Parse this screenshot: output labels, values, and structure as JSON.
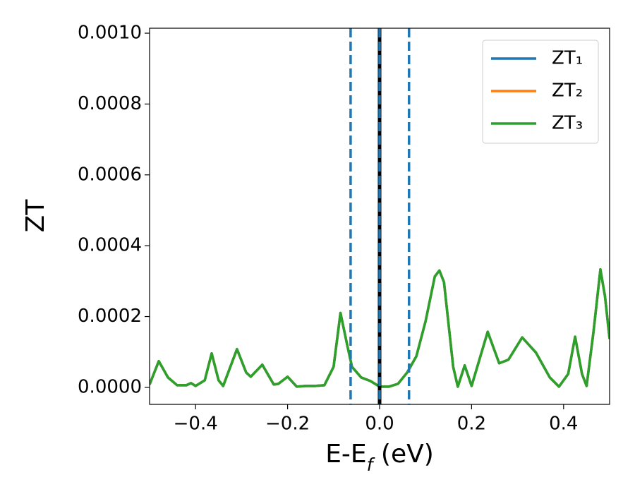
{
  "chart_data": {
    "type": "line",
    "x_label": {
      "main": "E-E",
      "sub": "f",
      "rest": " (eV)"
    },
    "y_label": "ZT",
    "x": [
      -0.5,
      -0.48,
      -0.46,
      -0.44,
      -0.42,
      -0.41,
      -0.4,
      -0.38,
      -0.365,
      -0.35,
      -0.34,
      -0.31,
      -0.29,
      -0.28,
      -0.255,
      -0.23,
      -0.22,
      -0.2,
      -0.18,
      -0.16,
      -0.14,
      -0.12,
      -0.1,
      -0.085,
      -0.07,
      -0.06,
      -0.04,
      -0.02,
      0,
      0.02,
      0.04,
      0.06,
      0.08,
      0.1,
      0.12,
      0.13,
      0.14,
      0.16,
      0.17,
      0.185,
      0.2,
      0.235,
      0.26,
      0.28,
      0.31,
      0.34,
      0.37,
      0.39,
      0.41,
      0.425,
      0.44,
      0.45,
      0.465,
      0.48,
      0.49,
      0.5
    ],
    "series": [
      {
        "name": "ZT₁",
        "color": "#1f77b4",
        "values": [
          8e-06,
          7.4e-05,
          2.8e-05,
          6e-06,
          6e-06,
          1.2e-05,
          4e-06,
          2e-05,
          9.6e-05,
          2e-05,
          4e-06,
          0.000108,
          4.2e-05,
          3e-05,
          6.4e-05,
          8e-06,
          1e-05,
          3e-05,
          2e-06,
          4e-06,
          4e-06,
          6e-06,
          5.8e-05,
          0.00021,
          0.000117,
          5.8e-05,
          2.8e-05,
          1.8e-05,
          2e-06,
          2e-06,
          1e-05,
          4.2e-05,
          8.8e-05,
          0.000187,
          0.000313,
          0.00033,
          0.000297,
          5.8e-05,
          2e-06,
          6.2e-05,
          4e-06,
          0.000157,
          6.8e-05,
          7.8e-05,
          0.000141,
          9.8e-05,
          2.8e-05,
          2e-06,
          3.8e-05,
          0.000143,
          3.8e-05,
          4e-06,
          0.000157,
          0.000333,
          0.000257,
          0.000137
        ]
      },
      {
        "name": "ZT₂",
        "color": "#ff7f0e",
        "values": [
          8e-06,
          7.4e-05,
          2.8e-05,
          6e-06,
          6e-06,
          1.2e-05,
          4e-06,
          2e-05,
          9.6e-05,
          2e-05,
          4e-06,
          0.000108,
          4.2e-05,
          3e-05,
          6.4e-05,
          8e-06,
          1e-05,
          3e-05,
          2e-06,
          4e-06,
          4e-06,
          6e-06,
          5.8e-05,
          0.00021,
          0.000117,
          5.8e-05,
          2.8e-05,
          1.8e-05,
          2e-06,
          2e-06,
          1e-05,
          4.2e-05,
          8.8e-05,
          0.000187,
          0.000313,
          0.00033,
          0.000297,
          5.8e-05,
          2e-06,
          6.2e-05,
          4e-06,
          0.000157,
          6.8e-05,
          7.8e-05,
          0.000141,
          9.8e-05,
          2.8e-05,
          2e-06,
          3.8e-05,
          0.000143,
          3.8e-05,
          4e-06,
          0.000157,
          0.000333,
          0.000257,
          0.000137
        ]
      },
      {
        "name": "ZT₃",
        "color": "#2ca02c",
        "values": [
          8e-06,
          7.4e-05,
          2.8e-05,
          6e-06,
          6e-06,
          1.2e-05,
          4e-06,
          2e-05,
          9.6e-05,
          2e-05,
          4e-06,
          0.000108,
          4.2e-05,
          3e-05,
          6.4e-05,
          8e-06,
          1e-05,
          3e-05,
          2e-06,
          4e-06,
          4e-06,
          6e-06,
          5.8e-05,
          0.00021,
          0.000117,
          5.8e-05,
          2.8e-05,
          1.8e-05,
          2e-06,
          2e-06,
          1e-05,
          4.2e-05,
          8.8e-05,
          0.000187,
          0.000313,
          0.00033,
          0.000297,
          5.8e-05,
          2e-06,
          6.2e-05,
          4e-06,
          0.000157,
          6.8e-05,
          7.8e-05,
          0.000141,
          9.8e-05,
          2.8e-05,
          2e-06,
          3.8e-05,
          0.000143,
          3.8e-05,
          4e-06,
          0.000157,
          0.000333,
          0.000257,
          0.000137
        ]
      }
    ],
    "vlines": [
      {
        "x": -0.063,
        "color": "#1f77b4",
        "style": "dashed"
      },
      {
        "x": 0,
        "color": "#000000",
        "style": "solid"
      },
      {
        "x": 0,
        "color": "#1f77b4",
        "style": "dashed"
      },
      {
        "x": 0.064,
        "color": "#1f77b4",
        "style": "dashed"
      }
    ],
    "xlim": [
      -0.5,
      0.5
    ],
    "ylim": [
      -4.8e-05,
      0.001014
    ],
    "xticks": [
      {
        "value": -0.4,
        "label": "−0.4"
      },
      {
        "value": -0.2,
        "label": "−0.2"
      },
      {
        "value": 0,
        "label": "0.0"
      },
      0.2,
      0.4
    ],
    "yticks": [
      {
        "value": 0,
        "label": "0.0000"
      },
      {
        "value": 0.0002,
        "label": "0.0002"
      },
      {
        "value": 0.0004,
        "label": "0.0004"
      },
      {
        "value": 0.0006,
        "label": "0.0006"
      },
      {
        "value": 0.0008,
        "label": "0.0008"
      },
      {
        "value": 0.001,
        "label": "0.0010"
      }
    ],
    "legend": "upper right",
    "grid": false
  }
}
